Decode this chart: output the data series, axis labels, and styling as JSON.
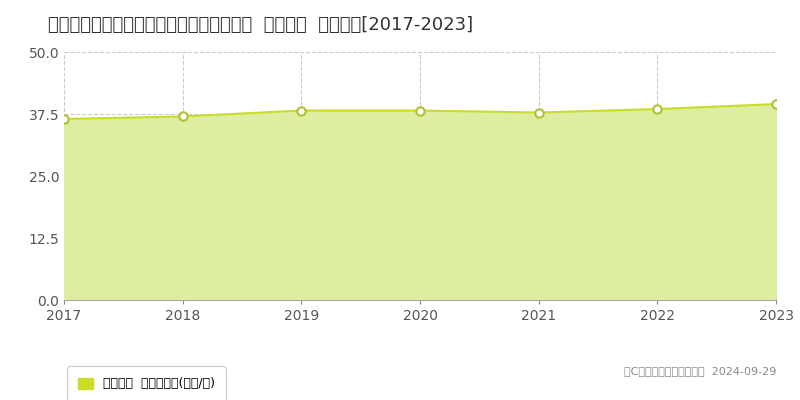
{
  "title": "愛知県春日井市如意申町４丁目２３番１９  基準地価  地価推移[2017-2023]",
  "years": [
    2017,
    2018,
    2019,
    2020,
    2021,
    2022,
    2023
  ],
  "values": [
    36.5,
    37.0,
    38.2,
    38.2,
    37.8,
    38.5,
    39.5
  ],
  "ylim": [
    0,
    50
  ],
  "yticks": [
    0,
    12.5,
    25,
    37.5,
    50
  ],
  "line_color": "#c8dc28",
  "fill_color": "#ddeea0",
  "fill_alpha": 1.0,
  "marker_color": "#ffffff",
  "marker_edge_color": "#b0c030",
  "bg_color": "#ffffff",
  "grid_color": "#cccccc",
  "legend_label": "基準地価  平均坪単価(万円/坪)",
  "legend_square_color": "#c8dc28",
  "copyright_text": "（C）土地価格ドットコム  2024-09-29",
  "title_fontsize": 13,
  "axis_fontsize": 10,
  "legend_fontsize": 9
}
